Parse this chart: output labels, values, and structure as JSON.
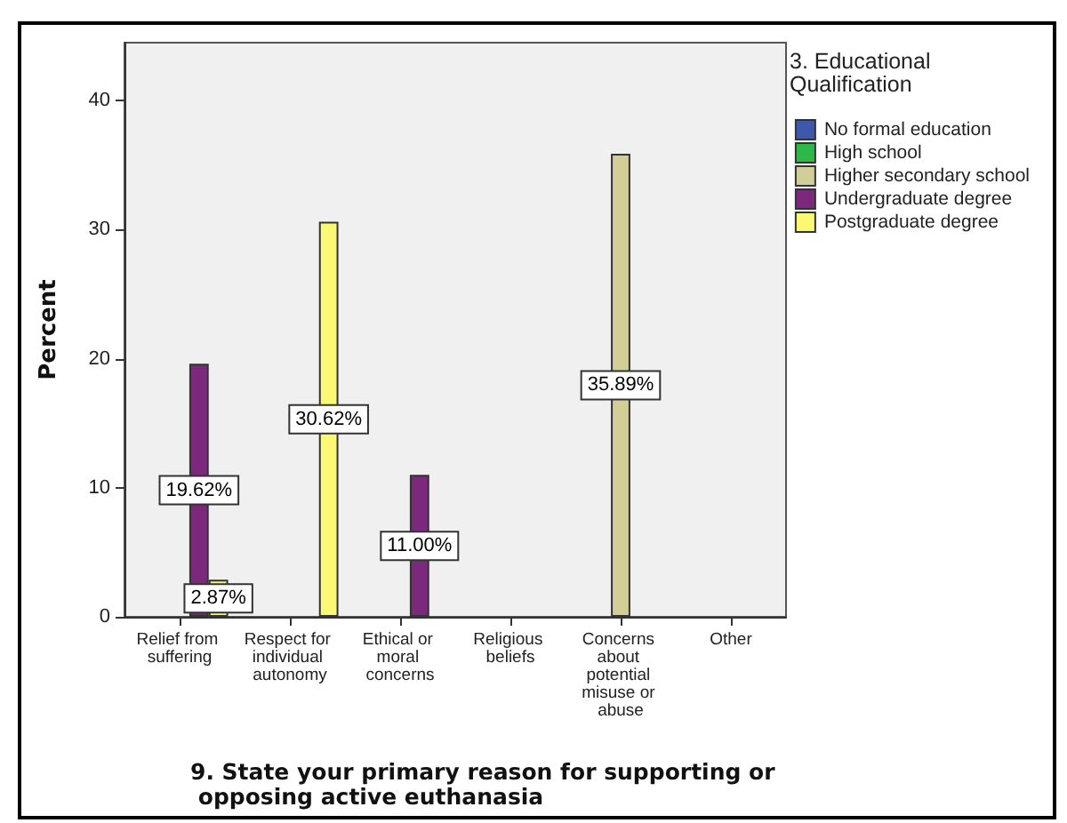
{
  "chart_data": {
    "type": "bar",
    "xlabel": "9. State your primary reason for supporting or opposing active euthanasia",
    "ylabel": "Percent",
    "legend_title": "3. Educational Qualification",
    "categories": [
      "Relief from suffering",
      "Respect for individual autonomy",
      "Ethical or moral concerns",
      "Religious beliefs",
      "Concerns about potential misuse or abuse",
      "Other"
    ],
    "series": [
      {
        "name": "No formal education",
        "color": "#3e58ac",
        "values": [
          null,
          null,
          null,
          null,
          null,
          null
        ],
        "value_labels": [
          null,
          null,
          null,
          null,
          null,
          null
        ]
      },
      {
        "name": "High school",
        "color": "#2eb848",
        "values": [
          null,
          null,
          null,
          null,
          null,
          null
        ],
        "value_labels": [
          null,
          null,
          null,
          null,
          null,
          null
        ]
      },
      {
        "name": "Higher secondary school",
        "color": "#d3ce97",
        "values": [
          null,
          null,
          null,
          null,
          35.89,
          null
        ],
        "value_labels": [
          null,
          null,
          null,
          null,
          "35.89%",
          null
        ]
      },
      {
        "name": "Undergraduate degree",
        "color": "#7c287d",
        "values": [
          19.62,
          null,
          11.0,
          null,
          null,
          null
        ],
        "value_labels": [
          "19.62%",
          null,
          "11.00%",
          null,
          null,
          null
        ]
      },
      {
        "name": "Postgraduate degree",
        "color": "#fbf873",
        "values": [
          2.87,
          30.62,
          null,
          null,
          null,
          null
        ],
        "value_labels": [
          "2.87%",
          "30.62%",
          null,
          null,
          null,
          null
        ]
      }
    ],
    "ylim": [
      0,
      44.5
    ],
    "yticks": [
      0,
      10,
      20,
      30,
      40
    ],
    "grid": false,
    "legend": "top right"
  }
}
